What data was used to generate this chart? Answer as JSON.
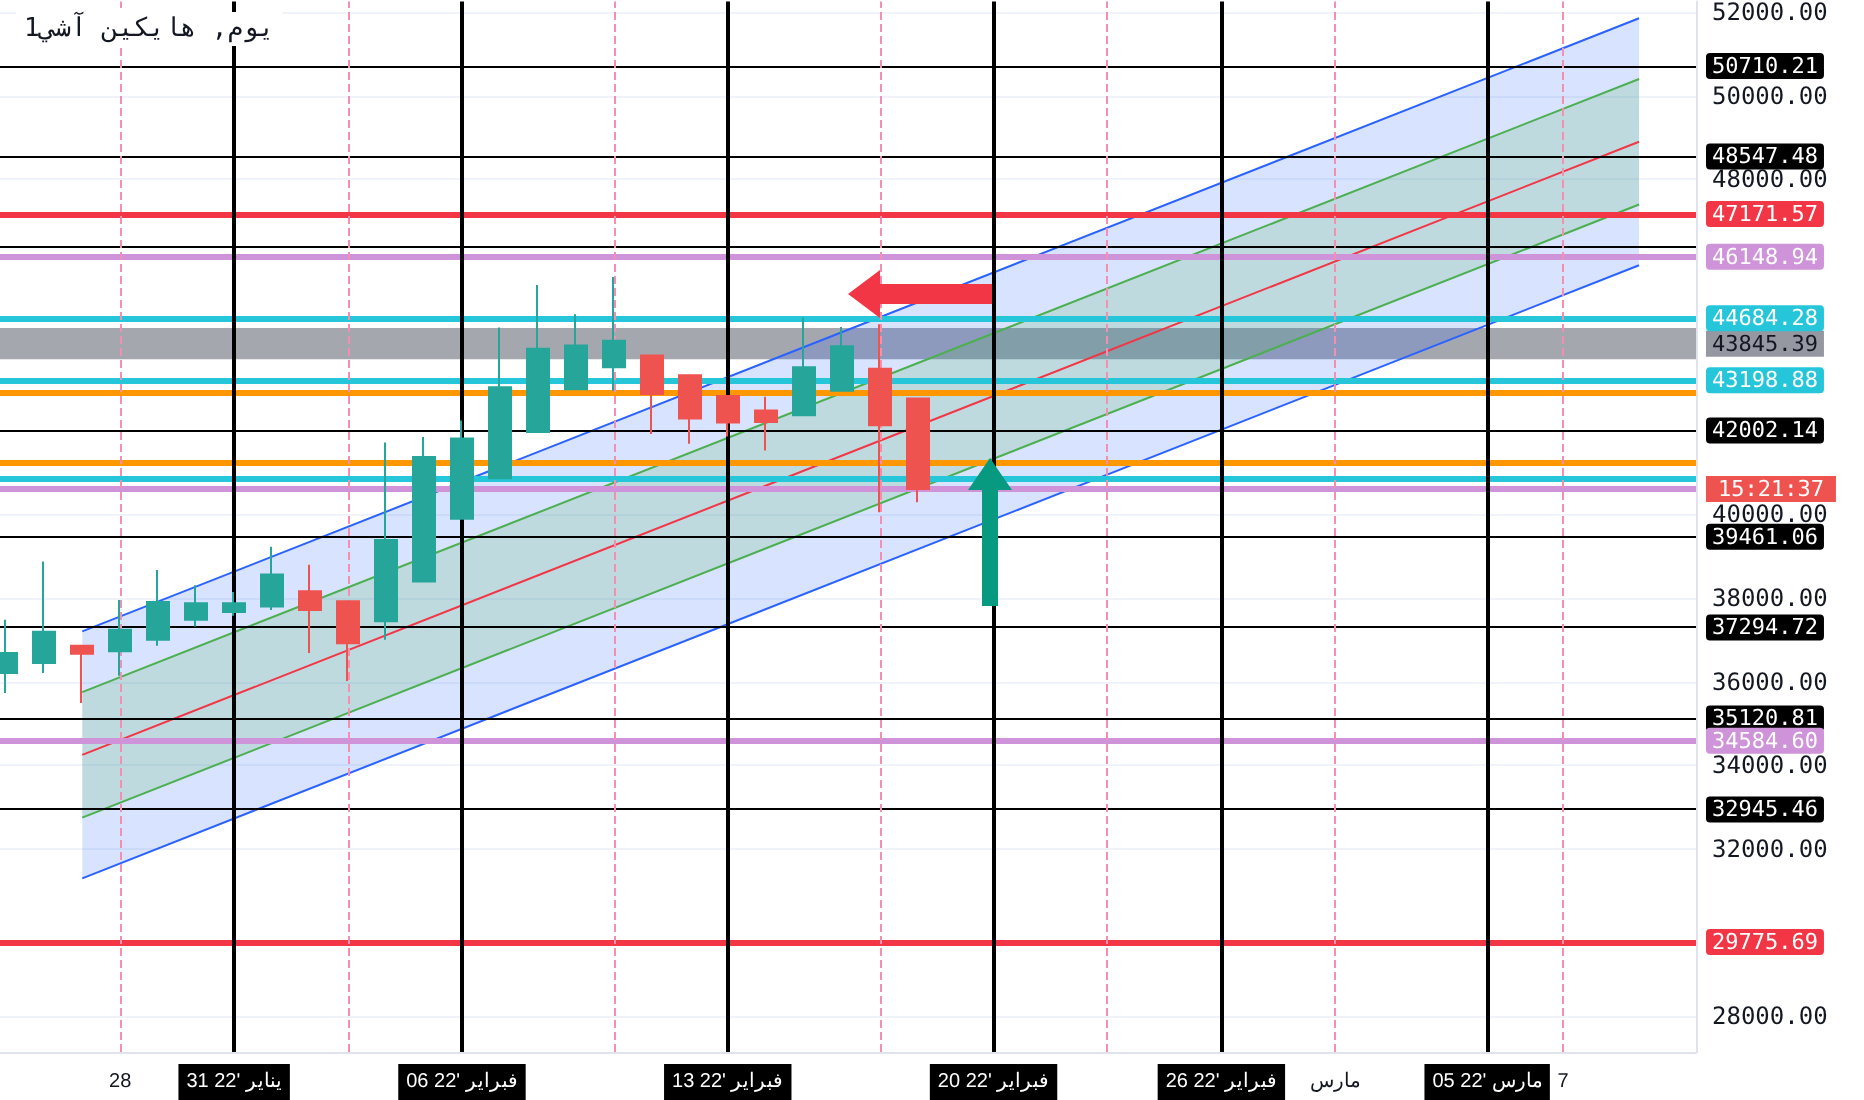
{
  "chart_data": {
    "type": "candlestick",
    "title": "1يوم, هايكين آشي",
    "x": [
      "2022-01-25",
      "2022-01-26",
      "2022-01-27",
      "2022-01-28",
      "2022-01-29",
      "2022-01-30",
      "2022-01-31",
      "2022-02-01",
      "2022-02-02",
      "2022-02-03",
      "2022-02-04",
      "2022-02-05",
      "2022-02-06",
      "2022-02-07",
      "2022-02-08",
      "2022-02-09",
      "2022-02-10",
      "2022-02-11",
      "2022-02-12",
      "2022-02-13",
      "2022-02-14",
      "2022-02-15",
      "2022-02-16",
      "2022-02-17",
      "2022-02-18"
    ],
    "ohlc": [
      [
        36205,
        37476,
        35728,
        36681
      ],
      [
        36442,
        38871,
        36205,
        37190
      ],
      [
        36857,
        36857,
        35490,
        36666
      ],
      [
        36728,
        37952,
        36143,
        37238
      ],
      [
        37000,
        38666,
        36857,
        37905
      ],
      [
        37476,
        38300,
        37319,
        37871
      ],
      [
        37666,
        38143,
        37571,
        37871
      ],
      [
        37795,
        39223,
        37714,
        38557
      ],
      [
        38157,
        38795,
        36681,
        37714
      ],
      [
        37919,
        37919,
        36014,
        36919
      ],
      [
        37443,
        41714,
        37000,
        39381
      ],
      [
        38395,
        41843,
        38395,
        41366
      ],
      [
        39890,
        42238,
        39890,
        41809
      ],
      [
        40857,
        44462,
        40857,
        43033
      ],
      [
        41967,
        45476,
        41967,
        43952
      ],
      [
        42985,
        44776,
        42985,
        44033
      ],
      [
        43509,
        45666,
        42952,
        44143
      ],
      [
        43795,
        43795,
        41919,
        42871
      ],
      [
        43319,
        43319,
        41681,
        42285
      ],
      [
        42824,
        42824,
        41857,
        42190
      ],
      [
        42476,
        42809,
        41524,
        42205
      ],
      [
        42367,
        44700,
        42367,
        43509
      ],
      [
        42952,
        44476,
        42952,
        44014
      ],
      [
        43476,
        44538,
        40047,
        42128
      ],
      [
        42762,
        42762,
        40286,
        40604
      ]
    ],
    "colors": [
      "#26a69a",
      "#26a69a",
      "#ef5350",
      "#26a69a",
      "#26a69a",
      "#26a69a",
      "#26a69a",
      "#26a69a",
      "#ef5350",
      "#ef5350",
      "#26a69a",
      "#26a69a",
      "#26a69a",
      "#26a69a",
      "#26a69a",
      "#26a69a",
      "#26a69a",
      "#ef5350",
      "#ef5350",
      "#ef5350",
      "#ef5350",
      "#26a69a",
      "#26a69a",
      "#ef5350",
      "#ef5350"
    ],
    "series": [
      {
        "type": "line",
        "color": "#2962ff",
        "x": [
          "2022-01-27",
          "2022-03-09"
        ],
        "values": [
          37200,
          51850
        ],
        "lower": [
          31300,
          45950
        ],
        "upper": [
          37200,
          51850
        ]
      },
      {
        "type": "line",
        "color": "#2962ff",
        "x": [
          "2022-01-27",
          "2022-03-09"
        ],
        "values": [
          31300,
          45950
        ]
      },
      {
        "type": "line",
        "color": "#4caf50",
        "x": [
          "2022-01-27",
          "2022-03-09"
        ],
        "values": [
          35750,
          50400
        ],
        "lower": [
          32750,
          47400
        ],
        "upper": [
          35750,
          50400
        ]
      },
      {
        "type": "line",
        "color": "#4caf50",
        "x": [
          "2022-01-27",
          "2022-03-09"
        ],
        "values": [
          32750,
          47400
        ]
      },
      {
        "type": "line",
        "color": "#f23645",
        "x": [
          "2022-01-27",
          "2022-03-09"
        ],
        "values": [
          34250,
          48900
        ]
      }
    ],
    "xlim": [
      "2022-01-24T20:00",
      "2022-03-10T12:00"
    ],
    "xticks": [
      {
        "value": "2022-01-28",
        "label": "28"
      },
      {
        "value": "2022-01-31",
        "label": "31 يناير '22"
      },
      {
        "value": "2022-02-06",
        "label": "06 فبراير '22"
      },
      {
        "value": "2022-02-13",
        "label": "13 فبراير '22"
      },
      {
        "value": "2022-02-20",
        "label": "20 فبراير '22"
      },
      {
        "value": "2022-02-26",
        "label": "26 فبراير '22"
      },
      {
        "value": "2022-03-01",
        "label": "مارس"
      },
      {
        "value": "2022-03-05",
        "label": "05 مارس '22"
      },
      {
        "value": "2022-03-07",
        "label": "7"
      }
    ],
    "ylim": [
      27150,
      52250
    ],
    "yticks": [
      {
        "value": 28000,
        "label": "28000.00"
      },
      {
        "value": 32000,
        "label": "32000.00"
      },
      {
        "value": 34000,
        "label": "34000.00"
      },
      {
        "value": 36000,
        "label": "36000.00"
      },
      {
        "value": 38000,
        "label": "38000.00"
      },
      {
        "value": 40000,
        "label": "40000.00"
      },
      {
        "value": 48000,
        "label": "48000.00"
      },
      {
        "value": 50000,
        "label": "50000.00"
      },
      {
        "value": 52000,
        "label": "52000.00"
      }
    ],
    "grid": "y",
    "ref_lines": [
      {
        "axis": "y",
        "value": 50710.21,
        "label": "50710.21",
        "color": "#000000"
      },
      {
        "axis": "y",
        "value": 48547.48,
        "label": "48547.48",
        "color": "#000000"
      },
      {
        "axis": "y",
        "value": 47171.57,
        "label": "47171.57",
        "color": "#f23645"
      },
      {
        "axis": "y",
        "value": 46418,
        "label": null,
        "color": "#000000"
      },
      {
        "axis": "y",
        "value": 46148.94,
        "label": "46148.94",
        "color": "#ce93d8"
      },
      {
        "axis": "y",
        "value": 44684.28,
        "label": "44684.28",
        "color": "#26c6da"
      },
      {
        "axis": "y",
        "value": 43198.88,
        "label": "43198.88",
        "color": "#26c6da"
      },
      {
        "axis": "y",
        "value": 42915,
        "label": null,
        "color": "#ff9800"
      },
      {
        "axis": "y",
        "value": 42002.14,
        "label": "42002.14",
        "color": "#000000"
      },
      {
        "axis": "y",
        "value": 41232,
        "label": null,
        "color": "#ff9800"
      },
      {
        "axis": "y",
        "value": 40877,
        "label": null,
        "color": "#26c6da"
      },
      {
        "axis": "y",
        "value": 40591,
        "label": null,
        "color": "#ce93d8"
      },
      {
        "axis": "y",
        "value": 39461.06,
        "label": "39461.06",
        "color": "#000000"
      },
      {
        "axis": "y",
        "value": 37294.72,
        "label": "37294.72",
        "color": "#000000"
      },
      {
        "axis": "y",
        "value": 35120.81,
        "label": "35120.81",
        "color": "#000000"
      },
      {
        "axis": "y",
        "value": 34584.6,
        "label": "34584.60",
        "color": "#ce93d8"
      },
      {
        "axis": "y",
        "value": 32945.46,
        "label": "32945.46",
        "color": "#000000"
      },
      {
        "axis": "y",
        "value": 29775.69,
        "label": "29775.69",
        "color": "#f23645"
      },
      {
        "axis": "x",
        "value": "2022-01-31",
        "color": "#000000"
      },
      {
        "axis": "x",
        "value": "2022-02-06",
        "color": "#000000"
      },
      {
        "axis": "x",
        "value": "2022-02-13",
        "color": "#000000"
      },
      {
        "axis": "x",
        "value": "2022-02-20",
        "color": "#000000"
      },
      {
        "axis": "x",
        "value": "2022-02-26",
        "color": "#000000"
      },
      {
        "axis": "x",
        "value": "2022-03-05",
        "color": "#000000"
      },
      {
        "axis": "x",
        "value": "2022-01-28",
        "color": "#f48fb1",
        "line_style": "dashed"
      },
      {
        "axis": "x",
        "value": "2022-02-03",
        "color": "#f48fb1",
        "line_style": "dashed"
      },
      {
        "axis": "x",
        "value": "2022-02-10",
        "color": "#f48fb1",
        "line_style": "dashed"
      },
      {
        "axis": "x",
        "value": "2022-02-17",
        "color": "#f48fb1",
        "line_style": "dashed"
      },
      {
        "axis": "x",
        "value": "2022-02-23",
        "color": "#f48fb1",
        "line_style": "dashed"
      },
      {
        "axis": "x",
        "value": "2022-03-01",
        "color": "#f48fb1",
        "line_style": "dashed"
      },
      {
        "axis": "x",
        "value": "2022-03-07",
        "color": "#f48fb1",
        "line_style": "dashed"
      }
    ],
    "bands": [
      {
        "axis": "y",
        "from": 43700,
        "to": 44450,
        "label": "43845.39",
        "color": "#9598a1"
      }
    ],
    "annotations": [
      "15:21:37"
    ]
  }
}
